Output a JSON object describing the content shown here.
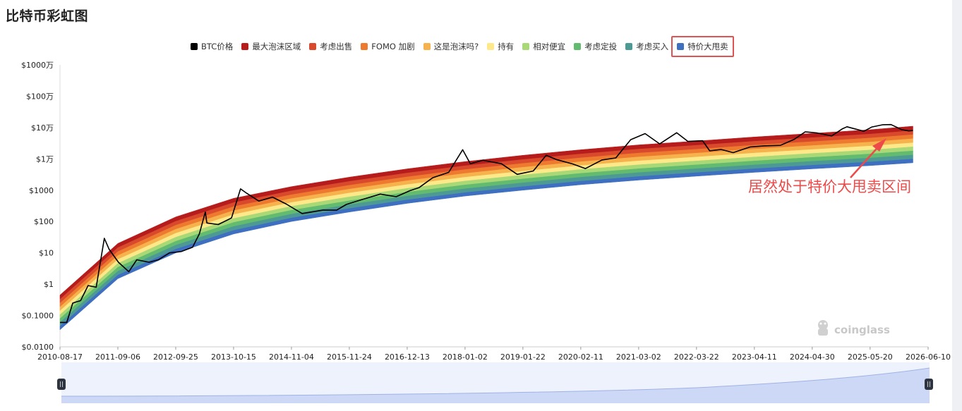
{
  "page": {
    "title": "比特币彩虹图"
  },
  "legend": [
    {
      "label": "BTC价格",
      "color": "#000000"
    },
    {
      "label": "最大泡沫区域",
      "color": "#b71c1c"
    },
    {
      "label": "考虑出售",
      "color": "#d84a2b"
    },
    {
      "label": "FOMO 加剧",
      "color": "#ee7a30"
    },
    {
      "label": "这是泡沫吗?",
      "color": "#f6b24c"
    },
    {
      "label": "持有",
      "color": "#fde98a"
    },
    {
      "label": "相对便宜",
      "color": "#a9d877"
    },
    {
      "label": "考虑定投",
      "color": "#62bb6f"
    },
    {
      "label": "考虑买入",
      "color": "#4d9a94"
    },
    {
      "label": "特价大甩卖",
      "color": "#3f6fc1"
    }
  ],
  "annotation": {
    "text": "居然处于特价大甩卖区间",
    "color": "#ee4a4a"
  },
  "watermark": {
    "text": "coinglass"
  },
  "chart_data": {
    "type": "area",
    "y_scale": "log",
    "ylim": [
      0.01,
      10000000
    ],
    "xlim": [
      "2010-08-17",
      "2026-06-10"
    ],
    "y_ticks": [
      {
        "value": 0.01,
        "label": "$0.0100"
      },
      {
        "value": 0.1,
        "label": "$0.1000"
      },
      {
        "value": 1,
        "label": "$1"
      },
      {
        "value": 10,
        "label": "$10"
      },
      {
        "value": 100,
        "label": "$100"
      },
      {
        "value": 1000,
        "label": "$1000"
      },
      {
        "value": 10000,
        "label": "$1万"
      },
      {
        "value": 100000,
        "label": "$10万"
      },
      {
        "value": 1000000,
        "label": "$100万"
      },
      {
        "value": 10000000,
        "label": "$1000万"
      }
    ],
    "x_ticks": [
      "2010-08-17",
      "2011-09-06",
      "2012-09-25",
      "2013-10-15",
      "2014-11-04",
      "2015-11-24",
      "2016-12-13",
      "2018-01-02",
      "2019-01-22",
      "2020-02-11",
      "2021-03-02",
      "2022-03-22",
      "2023-04-11",
      "2024-04-30",
      "2025-05-20",
      "2026-06-10"
    ],
    "bands": {
      "dates": [
        "2010-08-17",
        "2011-09-06",
        "2012-09-25",
        "2013-10-15",
        "2014-11-04",
        "2015-11-24",
        "2016-12-13",
        "2018-01-02",
        "2019-01-22",
        "2020-02-11",
        "2021-03-02",
        "2022-03-22",
        "2023-04-11",
        "2024-04-30",
        "2025-05-20",
        "2026-03-01"
      ],
      "lower": [
        0.035,
        1.5,
        10,
        40,
        100,
        200,
        380,
        650,
        1000,
        1500,
        2100,
        2800,
        3700,
        4800,
        6100,
        7500
      ],
      "upper": [
        0.45,
        20,
        140,
        550,
        1300,
        2600,
        4800,
        8200,
        13000,
        19500,
        28000,
        37000,
        50000,
        65000,
        85000,
        110000
      ]
    },
    "series": [
      {
        "name": "BTC价格",
        "color": "#000000",
        "dates": [
          "2010-08-17",
          "2010-10-01",
          "2010-11-10",
          "2011-01-01",
          "2011-02-20",
          "2011-04-15",
          "2011-06-08",
          "2011-07-10",
          "2011-09-10",
          "2011-11-18",
          "2012-01-10",
          "2012-04-01",
          "2012-06-01",
          "2012-08-15",
          "2012-11-01",
          "2013-01-15",
          "2013-03-01",
          "2013-04-10",
          "2013-04-20",
          "2013-07-05",
          "2013-10-01",
          "2013-11-30",
          "2014-01-10",
          "2014-04-01",
          "2014-07-01",
          "2014-10-01",
          "2015-01-14",
          "2015-06-01",
          "2015-09-01",
          "2015-11-04",
          "2016-01-01",
          "2016-06-17",
          "2016-10-01",
          "2017-01-01",
          "2017-03-01",
          "2017-06-01",
          "2017-09-15",
          "2017-12-17",
          "2018-02-06",
          "2018-05-01",
          "2018-09-01",
          "2018-12-15",
          "2019-04-01",
          "2019-06-26",
          "2019-09-01",
          "2019-12-18",
          "2020-03-13",
          "2020-07-01",
          "2020-10-01",
          "2021-01-08",
          "2021-04-14",
          "2021-07-20",
          "2021-11-10",
          "2022-01-24",
          "2022-05-01",
          "2022-06-18",
          "2022-09-01",
          "2022-11-21",
          "2023-03-15",
          "2023-06-15",
          "2023-10-01",
          "2024-01-01",
          "2024-03-14",
          "2024-06-01",
          "2024-09-06",
          "2024-11-15",
          "2024-12-17",
          "2025-04-08",
          "2025-06-01",
          "2025-08-14",
          "2025-10-06",
          "2025-12-15",
          "2026-02-01",
          "2026-03-01"
        ],
        "values": [
          0.06,
          0.06,
          0.25,
          0.3,
          0.9,
          0.8,
          29,
          13,
          5,
          2.5,
          6,
          5,
          6,
          10,
          11,
          15,
          40,
          200,
          90,
          80,
          130,
          1100,
          800,
          450,
          600,
          360,
          180,
          230,
          230,
          350,
          430,
          750,
          620,
          970,
          1200,
          2500,
          3700,
          19500,
          7000,
          9000,
          7000,
          3200,
          4100,
          13000,
          9500,
          6900,
          4900,
          9200,
          10700,
          41000,
          64000,
          30000,
          68000,
          36000,
          38000,
          18000,
          20000,
          15800,
          24000,
          26000,
          27000,
          42000,
          73000,
          67000,
          54000,
          90000,
          106000,
          76000,
          104000,
          123000,
          124000,
          86000,
          78000,
          80000
        ]
      }
    ]
  }
}
